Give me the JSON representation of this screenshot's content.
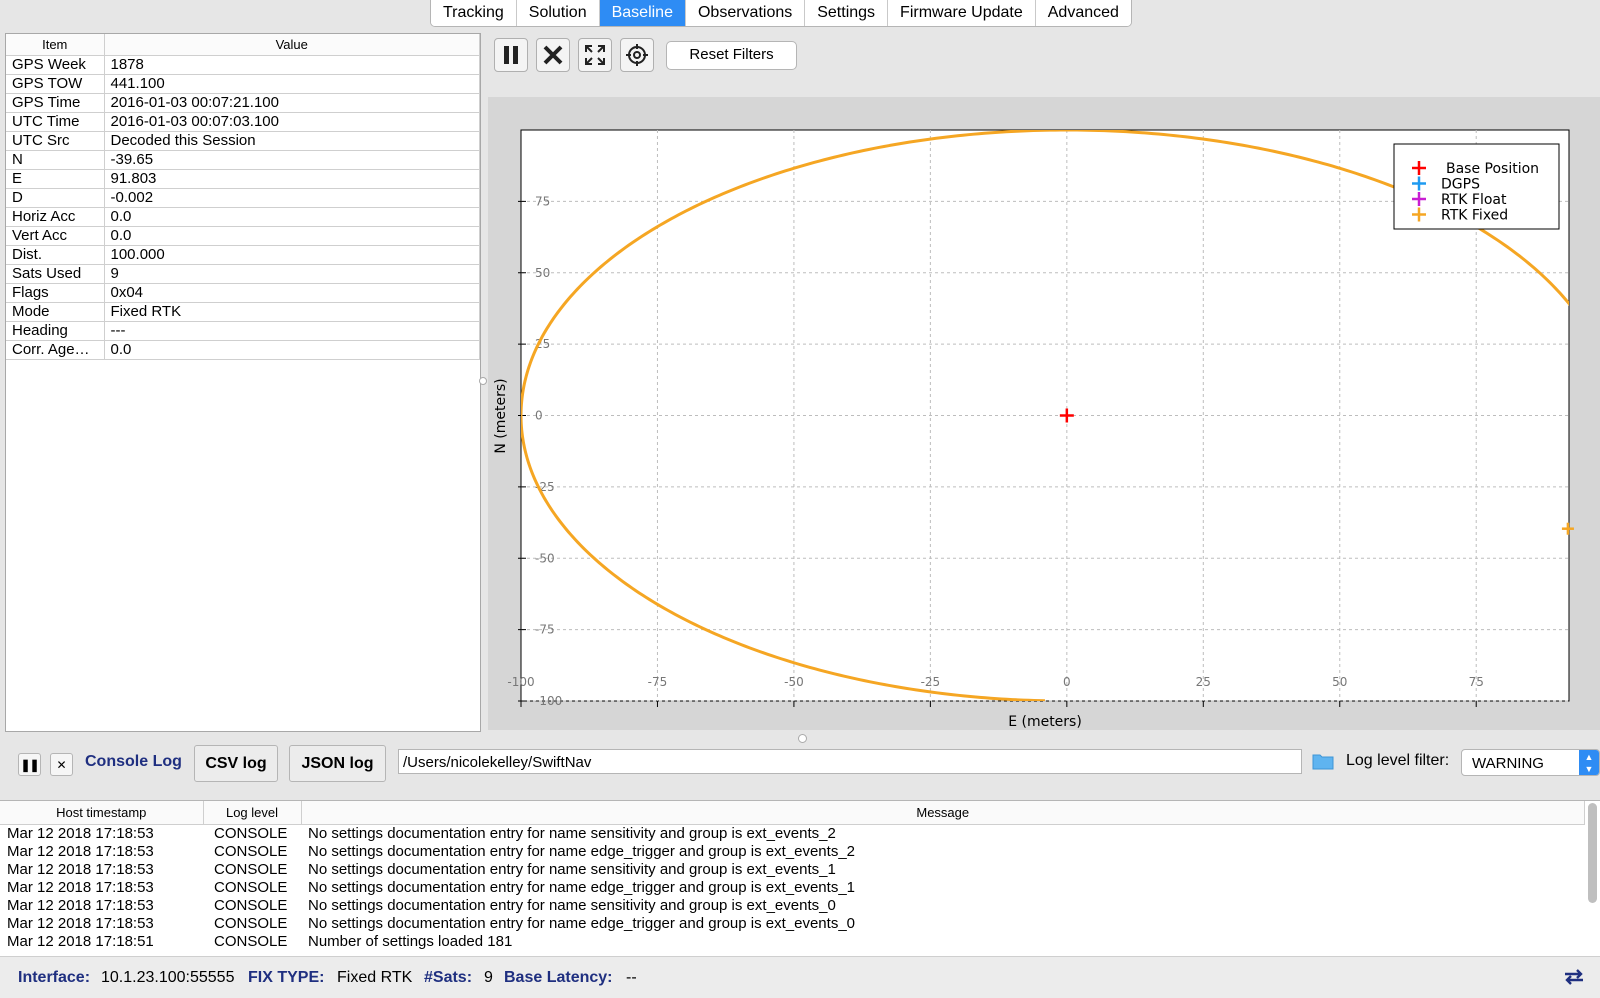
{
  "tabs": [
    "Tracking",
    "Solution",
    "Baseline",
    "Observations",
    "Settings",
    "Firmware Update",
    "Advanced"
  ],
  "active_tab": "Baseline",
  "table": {
    "headers": [
      "Item",
      "Value"
    ],
    "rows": [
      [
        "GPS Week",
        "1878"
      ],
      [
        "GPS TOW",
        "441.100"
      ],
      [
        "GPS Time",
        "2016-01-03 00:07:21.100"
      ],
      [
        "UTC Time",
        "2016-01-03 00:07:03.100"
      ],
      [
        "UTC Src",
        "Decoded this Session"
      ],
      [
        "N",
        "-39.65"
      ],
      [
        "E",
        "91.803"
      ],
      [
        "D",
        "-0.002"
      ],
      [
        "Horiz Acc",
        "0.0"
      ],
      [
        "Vert Acc",
        "0.0"
      ],
      [
        "Dist.",
        "100.000"
      ],
      [
        "Sats Used",
        "9"
      ],
      [
        "Flags",
        "0x04"
      ],
      [
        "Mode",
        "Fixed RTK"
      ],
      [
        "Heading",
        "---"
      ],
      [
        "Corr. Age…",
        "0.0"
      ]
    ]
  },
  "toolbar": {
    "pause_icon": "pause-icon",
    "clear_icon": "x-icon",
    "zoom_icon": "expand-icon",
    "center_icon": "crosshair-icon",
    "reset_label": "Reset Filters"
  },
  "chart_data": {
    "type": "scatter",
    "xlabel": "E (meters)",
    "ylabel": "N (meters)",
    "xlim": [
      -100,
      92
    ],
    "ylim": [
      -100,
      100
    ],
    "xticks": [
      -100,
      -75,
      -50,
      -25,
      0,
      25,
      50,
      75
    ],
    "yticks": [
      75,
      50,
      25,
      0,
      -25,
      -50,
      -75,
      -100
    ],
    "xtick_labels": [
      "-100",
      "-75",
      "-50",
      "-25",
      "0",
      "25",
      "50",
      "75"
    ],
    "ytick_labels": [
      "75",
      "50",
      "25",
      "0",
      "-25",
      "-50",
      "-75",
      "-100"
    ],
    "grid": true,
    "legend_position": "top-right",
    "series": [
      {
        "name": "Base Position",
        "color": "#ff0000",
        "points": [
          [
            0,
            0
          ]
        ]
      },
      {
        "name": "DGPS",
        "color": "#1e9af0",
        "points": []
      },
      {
        "name": "RTK Float",
        "color": "#c81ed2",
        "points": []
      },
      {
        "name": "RTK Fixed",
        "color": "#f5a623",
        "points": "circle_r100_arc",
        "current": [
          91.803,
          -39.65
        ]
      }
    ]
  },
  "console": {
    "pause_icon": "pause-icon",
    "clear_icon": "x-icon",
    "title": "Console Log",
    "csv_label": "CSV log",
    "json_label": "JSON log",
    "path": "/Users/nicolekelley/SwiftNav",
    "folder_icon": "folder-icon",
    "filter_label": "Log level filter:",
    "filter_value": "WARNING",
    "headers": [
      "Host timestamp",
      "Log level",
      "Message"
    ],
    "rows": [
      [
        "Mar 12 2018 17:18:53",
        "CONSOLE",
        "No settings documentation entry for name sensitivity and group is ext_events_2"
      ],
      [
        "Mar 12 2018 17:18:53",
        "CONSOLE",
        "No settings documentation entry for name edge_trigger and group is ext_events_2"
      ],
      [
        "Mar 12 2018 17:18:53",
        "CONSOLE",
        "No settings documentation entry for name sensitivity and group is ext_events_1"
      ],
      [
        "Mar 12 2018 17:18:53",
        "CONSOLE",
        "No settings documentation entry for name edge_trigger and group is ext_events_1"
      ],
      [
        "Mar 12 2018 17:18:53",
        "CONSOLE",
        "No settings documentation entry for name sensitivity and group is ext_events_0"
      ],
      [
        "Mar 12 2018 17:18:53",
        "CONSOLE",
        "No settings documentation entry for name edge_trigger and group is ext_events_0"
      ],
      [
        "Mar 12 2018 17:18:51",
        "CONSOLE",
        "Number of settings loaded 181"
      ]
    ]
  },
  "status": {
    "interface_label": "Interface:",
    "interface_value": "10.1.23.100:55555",
    "fix_label": "FIX TYPE:",
    "fix_value": "Fixed RTK",
    "sats_label": "#Sats:",
    "sats_value": "9",
    "latency_label": "Base Latency:",
    "latency_value": "--",
    "sync_icon": "sync-icon"
  }
}
